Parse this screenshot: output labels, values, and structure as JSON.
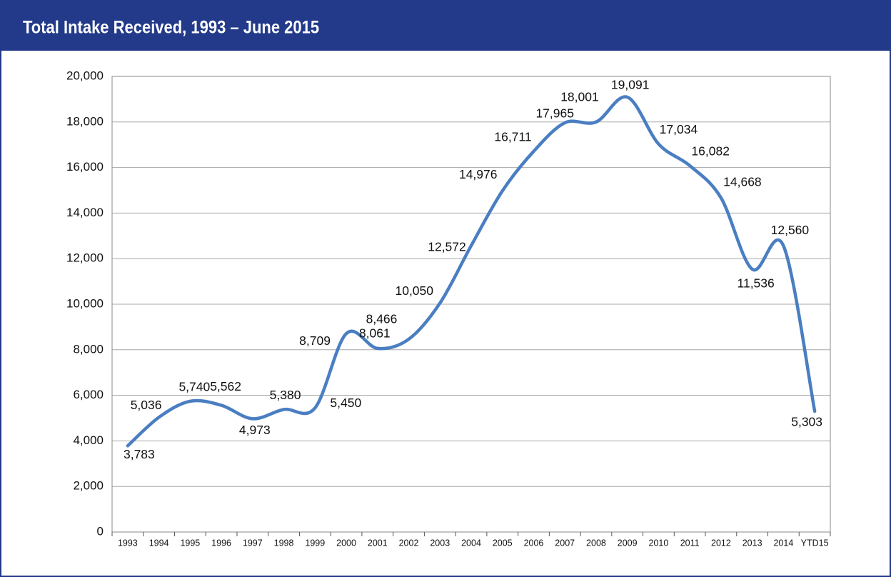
{
  "chart_data": {
    "type": "line",
    "title": "Total Intake Received, 1993 – June 2015",
    "categories": [
      "1993",
      "1994",
      "1995",
      "1996",
      "1997",
      "1998",
      "1999",
      "2000",
      "2001",
      "2002",
      "2003",
      "2004",
      "2005",
      "2006",
      "2007",
      "2008",
      "2009",
      "2010",
      "2011",
      "2012",
      "2013",
      "2014",
      "YTD15"
    ],
    "series": [
      {
        "name": "Total Intake",
        "color": "#4a7ec2",
        "values": [
          3783,
          5036,
          5740,
          5562,
          4973,
          5380,
          5450,
          8709,
          8061,
          8466,
          10050,
          12572,
          14976,
          16711,
          17965,
          18001,
          19091,
          17034,
          16082,
          14668,
          11536,
          12560,
          5303
        ],
        "value_labels": [
          "3,783",
          "5,036",
          "5,740",
          "5,562",
          "4,973",
          "5,380",
          "5,450",
          "8,709",
          "8,061",
          "8,466",
          "10,050",
          "12,572",
          "14,976",
          "16,711",
          "17,965",
          "18,001",
          "19,091",
          "17,034",
          "16,082",
          "14,668",
          "11,536",
          "12,560",
          "5,303"
        ]
      }
    ],
    "ylim": [
      0,
      20000
    ],
    "yticks": [
      0,
      {
        "value": 2000,
        "label": "2,000"
      },
      {
        "value": 4000,
        "label": "4,000"
      },
      {
        "value": 6000,
        "label": "6,000"
      },
      {
        "value": 8000,
        "label": "8,000"
      },
      {
        "value": 10000,
        "label": "10,000"
      },
      {
        "value": 12000,
        "label": "12,000"
      },
      {
        "value": 14000,
        "label": "14,000"
      },
      {
        "value": 16000,
        "label": "16,000"
      },
      {
        "value": 18000,
        "label": "18,000"
      },
      {
        "value": 20000,
        "label": "20,000"
      }
    ],
    "grid": true
  }
}
